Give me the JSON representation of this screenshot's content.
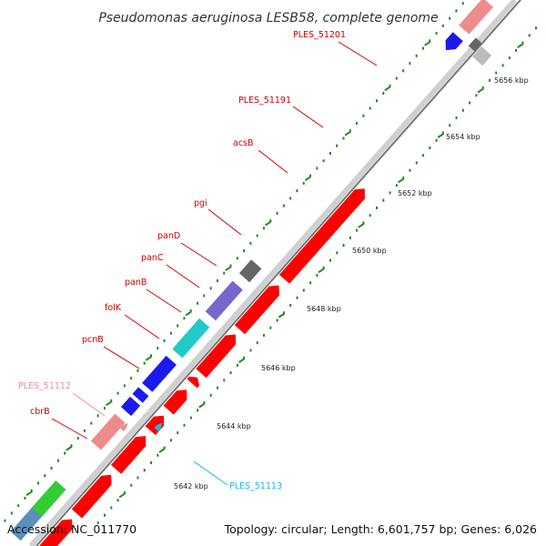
{
  "title": "Pseudomonas aeruginosa LESB58, complete genome",
  "footer": {
    "accession": "Accession: NC_011770",
    "topology": "Topology: circular; Length: 6,601,757 bp; Genes: 6,026"
  },
  "colors": {
    "cds": "#ff0000",
    "gene_red": "#ee1111",
    "label_red": "#cc0000",
    "gene_pink": "#ef8b8b",
    "gene_blue": "#1a1aee",
    "gene_cyan": "#21c9c9",
    "gene_purple": "#7766cc",
    "gene_gray": "#666666",
    "gene_green": "#33cc33",
    "gene_steel": "#5b8fbf",
    "gene_lightgray": "#bbbbbb",
    "backbone": "#666666",
    "dots": "#228822",
    "label_pink": "#f08aa0",
    "label_cyan": "#19b8e6"
  },
  "ticks": [
    "5642 kbp",
    "5644 kbp",
    "5646 kbp",
    "5648 kbp",
    "5650 kbp",
    "5652 kbp",
    "5654 kbp",
    "5656 kbp"
  ],
  "labels": [
    {
      "text": "PLES_51201",
      "color": "label_red"
    },
    {
      "text": "PLES_51191",
      "color": "label_red"
    },
    {
      "text": "acsB",
      "color": "label_red"
    },
    {
      "text": "pgi",
      "color": "label_red"
    },
    {
      "text": "panD",
      "color": "label_red"
    },
    {
      "text": "panC",
      "color": "label_red"
    },
    {
      "text": "panB",
      "color": "label_red"
    },
    {
      "text": "folK",
      "color": "label_red"
    },
    {
      "text": "pcnB",
      "color": "label_red"
    },
    {
      "text": "PLES_51112",
      "color": "label_pink"
    },
    {
      "text": "cbrB",
      "color": "label_red"
    },
    {
      "text": "PLES_51113",
      "color": "label_cyan"
    }
  ],
  "genes_inner": [
    {
      "color": "gene_steel"
    },
    {
      "color": "gene_green"
    },
    {
      "color": "gene_pink"
    },
    {
      "color": "gene_blue"
    },
    {
      "color": "gene_blue"
    },
    {
      "color": "gene_blue"
    },
    {
      "color": "gene_cyan"
    },
    {
      "color": "gene_purple"
    },
    {
      "color": "gene_gray"
    },
    {
      "color": "gene_blue"
    },
    {
      "color": "gene_pink"
    }
  ],
  "genes_outer": [
    {
      "color": "cds"
    },
    {
      "color": "cds"
    },
    {
      "color": "cds"
    },
    {
      "color": "cds"
    },
    {
      "color": "cds"
    },
    {
      "color": "cds"
    },
    {
      "color": "cds"
    },
    {
      "color": "cds"
    },
    {
      "color": "cds"
    },
    {
      "color": "gene_lightgray"
    },
    {
      "color": "gene_gray"
    }
  ],
  "small_marks": [
    {
      "color": "gene_pink"
    },
    {
      "color": "label_cyan"
    }
  ]
}
